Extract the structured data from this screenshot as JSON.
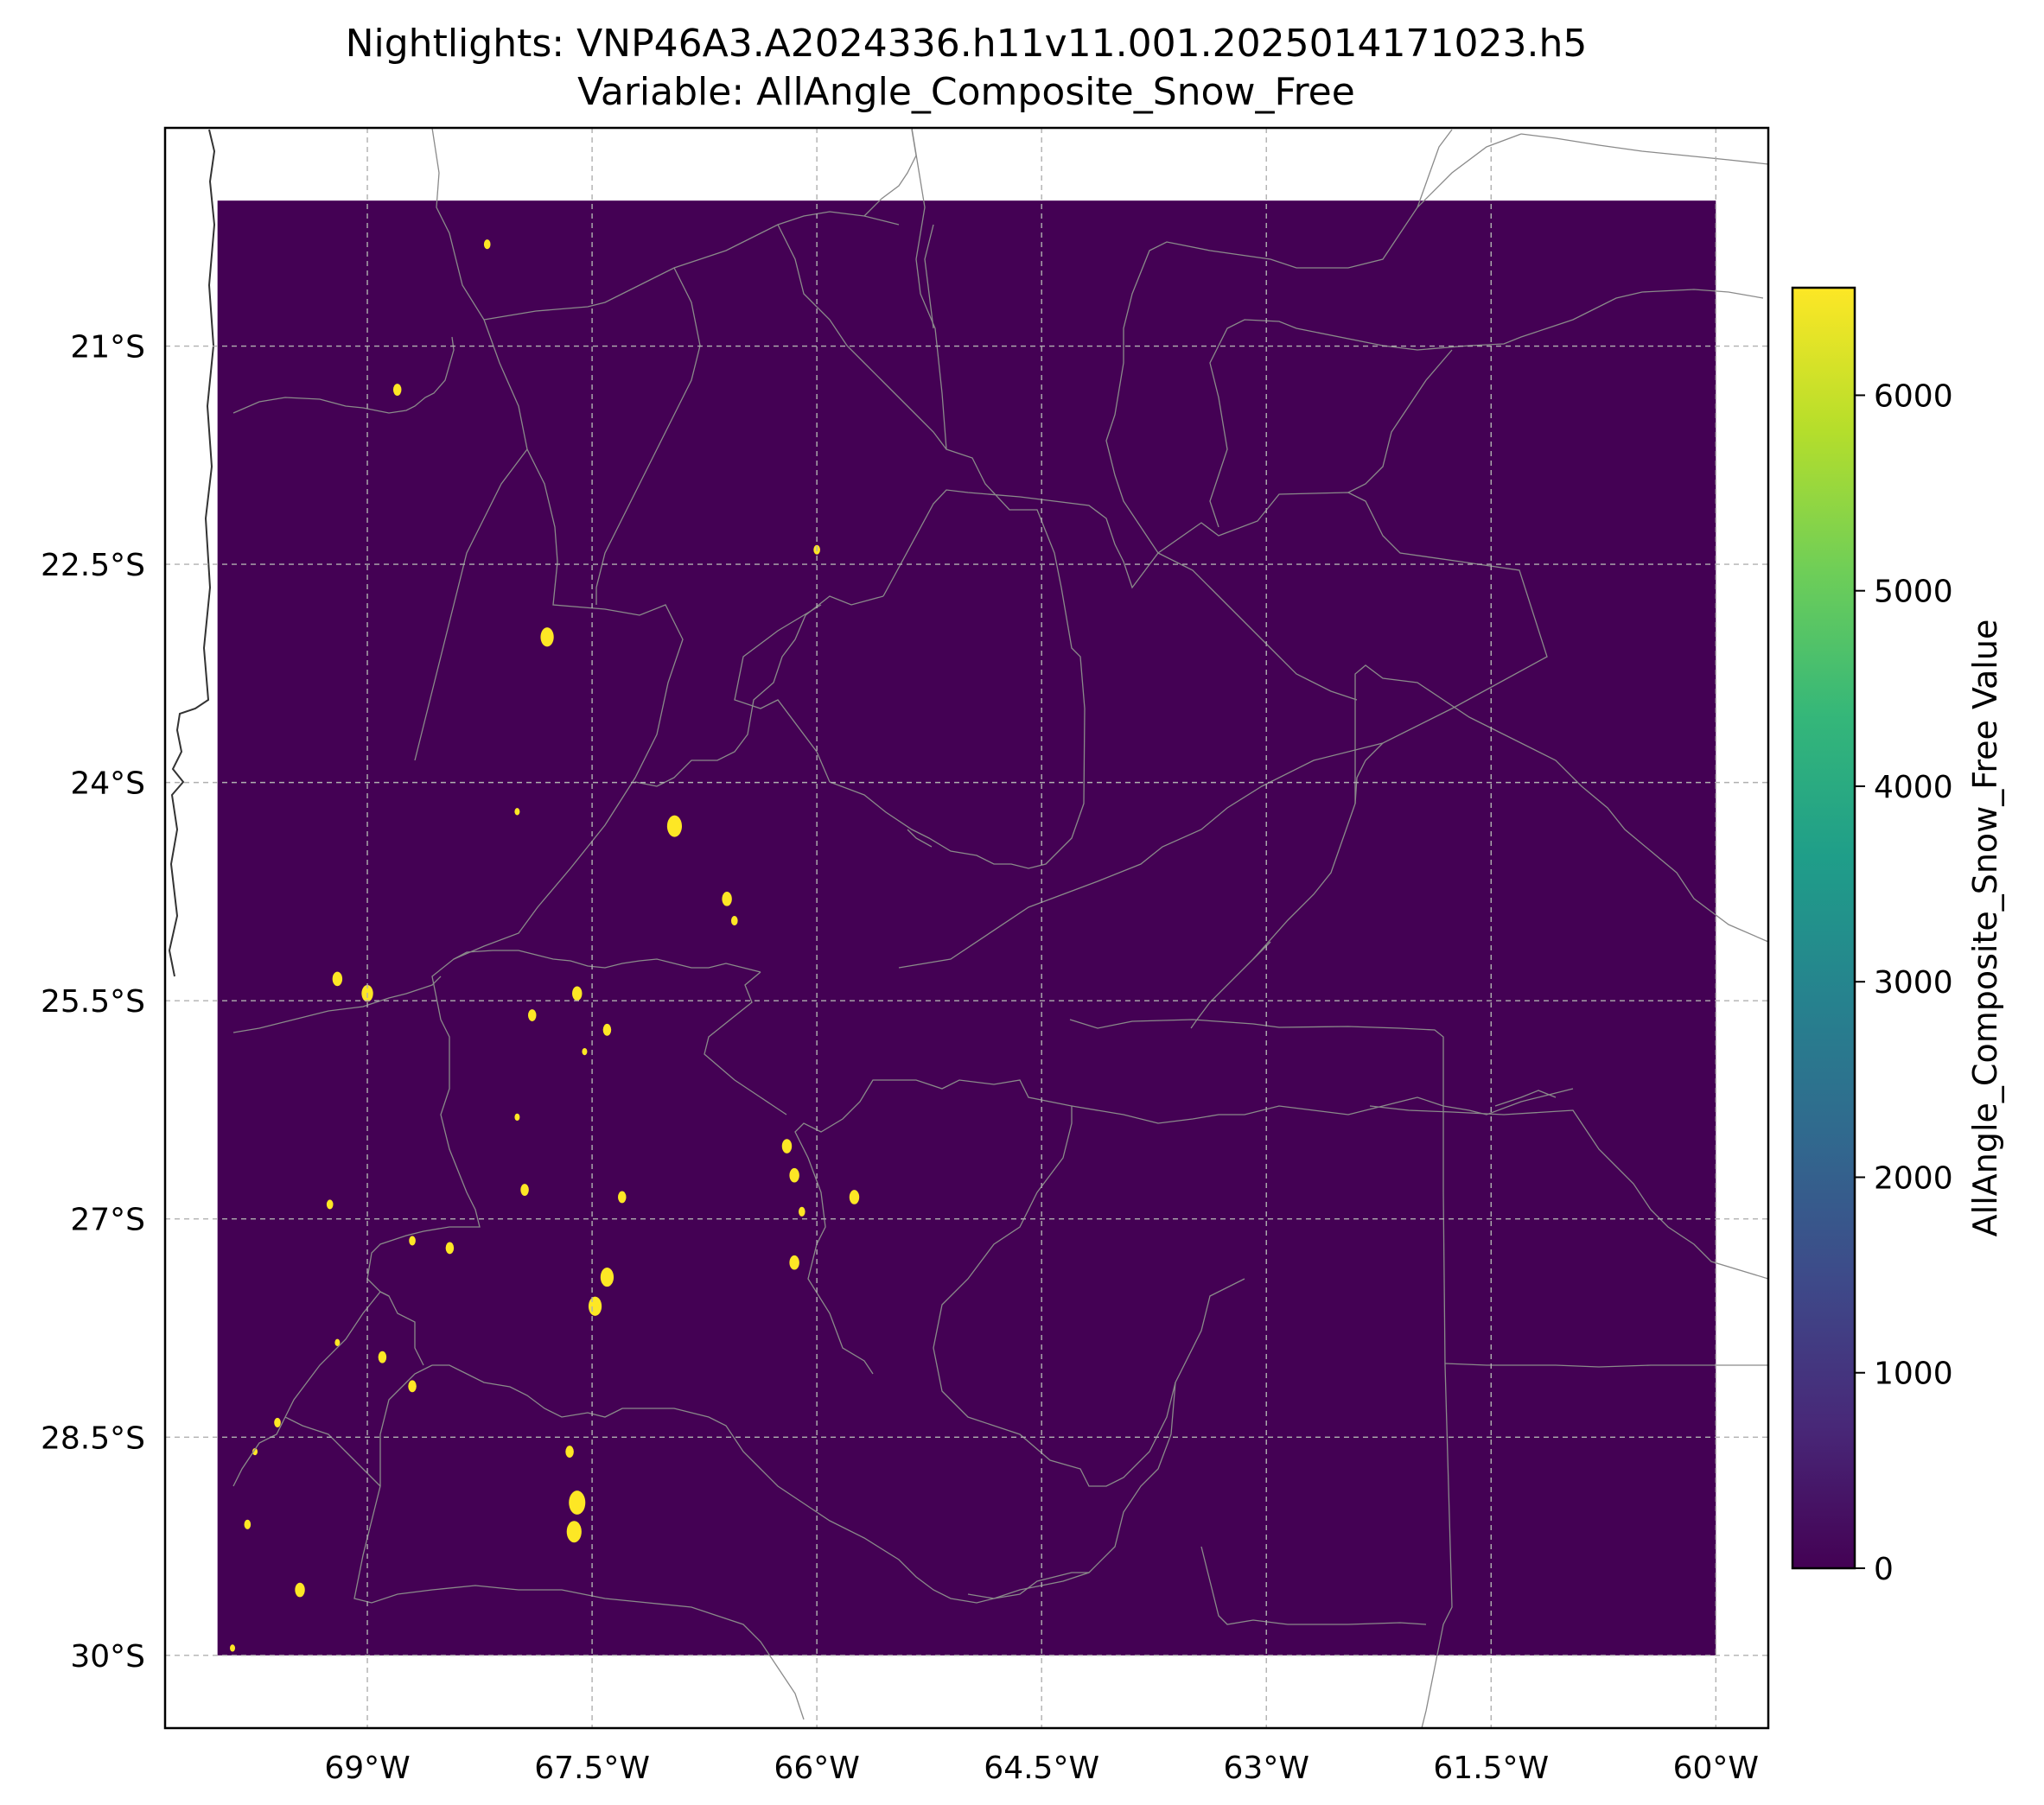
{
  "title": {
    "line1": "Nightlights: VNP46A3.A2024336.h11v11.001.2025014171023.h5",
    "line2": "Variable: AllAngle_Composite_Snow_Free"
  },
  "map": {
    "lon_range": [
      -70.35,
      -59.65
    ],
    "lat_range": [
      -30.5,
      -19.5
    ],
    "data_extent": {
      "lon": [
        -70,
        -60
      ],
      "lat": [
        -30,
        -20
      ]
    },
    "background_color": "#440154",
    "grid": true,
    "x_ticks": [
      {
        "value": -69,
        "label": "69°W"
      },
      {
        "value": -67.5,
        "label": "67.5°W"
      },
      {
        "value": -66,
        "label": "66°W"
      },
      {
        "value": -64.5,
        "label": "64.5°W"
      },
      {
        "value": -63,
        "label": "63°W"
      },
      {
        "value": -61.5,
        "label": "61.5°W"
      },
      {
        "value": -60,
        "label": "60°W"
      }
    ],
    "y_ticks": [
      {
        "value": -21,
        "label": "21°S"
      },
      {
        "value": -22.5,
        "label": "22.5°S"
      },
      {
        "value": -24,
        "label": "24°S"
      },
      {
        "value": -25.5,
        "label": "25.5°S"
      },
      {
        "value": -27,
        "label": "27°S"
      },
      {
        "value": -28.5,
        "label": "28.5°S"
      },
      {
        "value": -30,
        "label": "30°S"
      }
    ],
    "bright_spots": [
      {
        "lon": -68.2,
        "lat": -20.3,
        "size": 0.04
      },
      {
        "lon": -68.8,
        "lat": -21.3,
        "size": 0.05
      },
      {
        "lon": -66.0,
        "lat": -22.4,
        "size": 0.04
      },
      {
        "lon": -67.8,
        "lat": -23.0,
        "size": 0.08
      },
      {
        "lon": -68.0,
        "lat": -24.2,
        "size": 0.03
      },
      {
        "lon": -66.95,
        "lat": -24.3,
        "size": 0.09
      },
      {
        "lon": -66.6,
        "lat": -24.8,
        "size": 0.06
      },
      {
        "lon": -66.55,
        "lat": -24.95,
        "size": 0.04
      },
      {
        "lon": -69.2,
        "lat": -25.35,
        "size": 0.06
      },
      {
        "lon": -69.0,
        "lat": -25.45,
        "size": 0.07
      },
      {
        "lon": -67.6,
        "lat": -25.45,
        "size": 0.06
      },
      {
        "lon": -67.9,
        "lat": -25.6,
        "size": 0.05
      },
      {
        "lon": -67.4,
        "lat": -25.7,
        "size": 0.05
      },
      {
        "lon": -67.55,
        "lat": -25.85,
        "size": 0.03
      },
      {
        "lon": -66.2,
        "lat": -26.5,
        "size": 0.06
      },
      {
        "lon": -66.15,
        "lat": -26.7,
        "size": 0.06
      },
      {
        "lon": -66.1,
        "lat": -26.95,
        "size": 0.04
      },
      {
        "lon": -65.75,
        "lat": -26.85,
        "size": 0.06
      },
      {
        "lon": -67.95,
        "lat": -26.8,
        "size": 0.05
      },
      {
        "lon": -67.3,
        "lat": -26.85,
        "size": 0.05
      },
      {
        "lon": -69.25,
        "lat": -26.9,
        "size": 0.04
      },
      {
        "lon": -66.15,
        "lat": -27.3,
        "size": 0.06
      },
      {
        "lon": -68.7,
        "lat": -27.15,
        "size": 0.04
      },
      {
        "lon": -68.45,
        "lat": -27.2,
        "size": 0.05
      },
      {
        "lon": -67.4,
        "lat": -27.4,
        "size": 0.08
      },
      {
        "lon": -67.48,
        "lat": -27.6,
        "size": 0.08
      },
      {
        "lon": -68.9,
        "lat": -27.95,
        "size": 0.05
      },
      {
        "lon": -68.7,
        "lat": -28.15,
        "size": 0.05
      },
      {
        "lon": -69.2,
        "lat": -27.85,
        "size": 0.03
      },
      {
        "lon": -68.0,
        "lat": -26.3,
        "size": 0.03
      },
      {
        "lon": -69.6,
        "lat": -28.4,
        "size": 0.04
      },
      {
        "lon": -69.75,
        "lat": -28.6,
        "size": 0.03
      },
      {
        "lon": -67.65,
        "lat": -28.6,
        "size": 0.05
      },
      {
        "lon": -67.6,
        "lat": -28.95,
        "size": 0.1
      },
      {
        "lon": -67.62,
        "lat": -29.15,
        "size": 0.09
      },
      {
        "lon": -69.8,
        "lat": -29.1,
        "size": 0.04
      },
      {
        "lon": -69.45,
        "lat": -29.55,
        "size": 0.06
      },
      {
        "lon": -69.9,
        "lat": -29.95,
        "size": 0.03
      }
    ]
  },
  "colorbar": {
    "label": "AllAngle_Composite_Snow_Free Value",
    "range": [
      0,
      6550
    ],
    "colors": [
      "#440154",
      "#482878",
      "#3e4989",
      "#31688e",
      "#26828e",
      "#1f9e89",
      "#35b779",
      "#6ece58",
      "#b5de2b",
      "#fde725"
    ],
    "ticks": [
      {
        "value": 0,
        "label": "0"
      },
      {
        "value": 1000,
        "label": "1000"
      },
      {
        "value": 2000,
        "label": "2000"
      },
      {
        "value": 3000,
        "label": "3000"
      },
      {
        "value": 4000,
        "label": "4000"
      },
      {
        "value": 5000,
        "label": "5000"
      },
      {
        "value": 6000,
        "label": "6000"
      }
    ]
  }
}
